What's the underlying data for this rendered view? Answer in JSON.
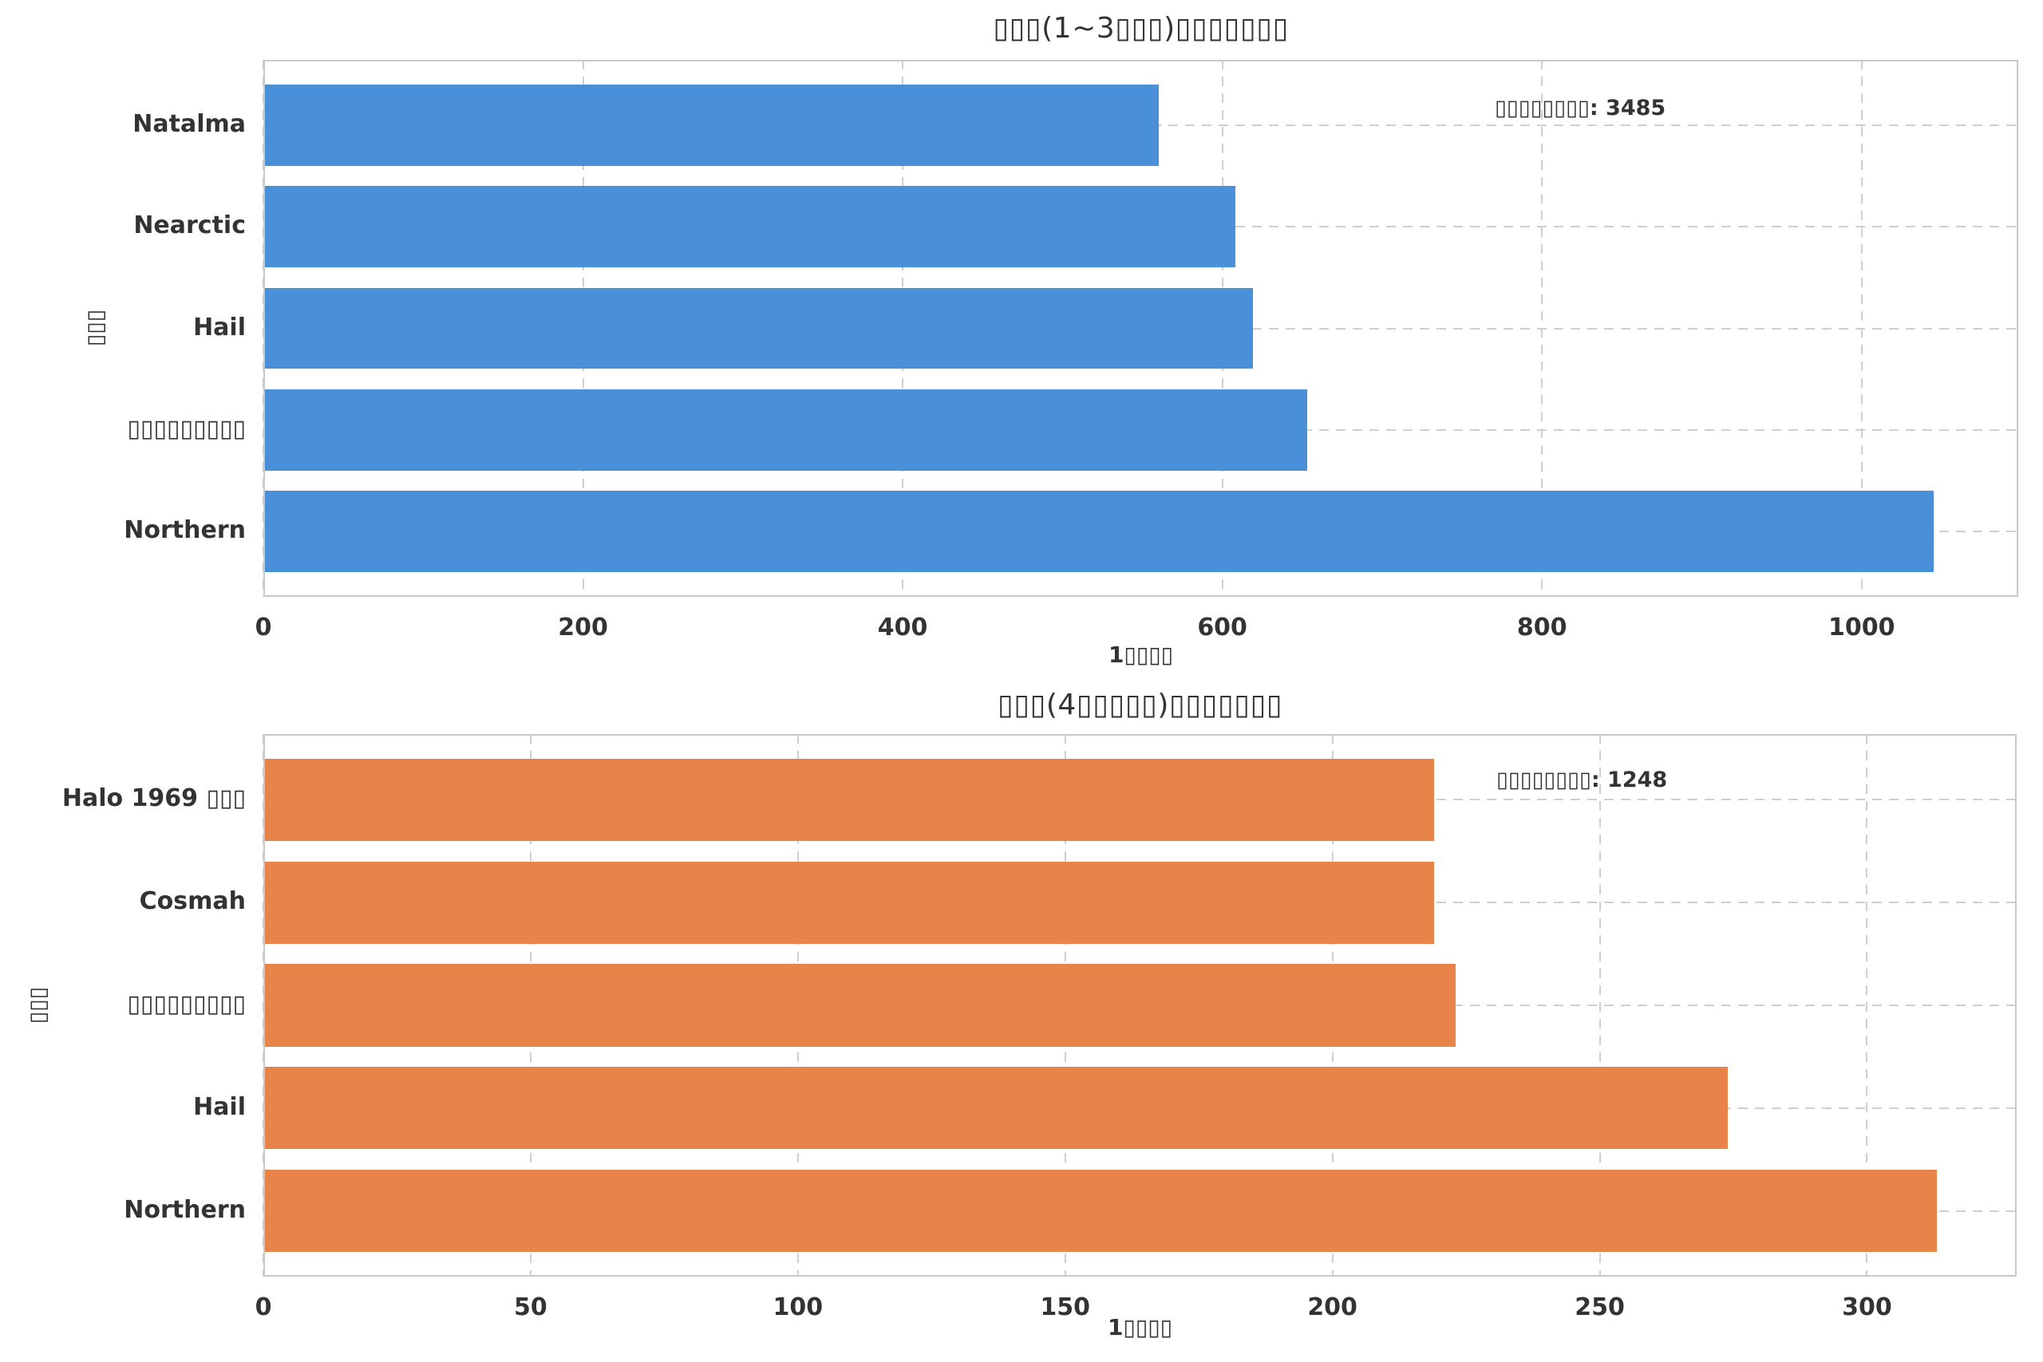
{
  "figure": {
    "background": "#ffffff"
  },
  "colors": {
    "grid": "#cfcfcf",
    "spine": "#c8c8c8",
    "text": "#333333",
    "blue_bar": "#4a90d9",
    "orange_bar": "#e8834a"
  },
  "chart_data": [
    {
      "type": "bar",
      "orientation": "horizontal",
      "title": "▯▯▯(1~3▯▯▯)▯▯▯▯▯▯▯",
      "xlabel": "1▯▯▯▯",
      "ylabel": "▯▯▯",
      "categories": [
        "Natalma",
        "Nearctic",
        "Hail",
        "▯▯▯▯▯▯▯▯▯",
        "Northern"
      ],
      "values": [
        560,
        608,
        619,
        653,
        1045
      ],
      "annotation": "▯▯▯▯▯▯▯▯: 3485",
      "annotation_total": 3485,
      "xticks": [
        0,
        200,
        400,
        600,
        800,
        1000
      ],
      "xlim": [
        0,
        1098
      ],
      "bar_color": "#4a90d9",
      "grid": true
    },
    {
      "type": "bar",
      "orientation": "horizontal",
      "title": "▯▯▯(4▯▯▯▯▯)▯▯▯▯▯▯▯",
      "xlabel": "1▯▯▯▯",
      "ylabel": "▯▯▯",
      "categories": [
        "Halo 1969 ▯▯▯",
        "Cosmah",
        "▯▯▯▯▯▯▯▯▯",
        "Hail",
        "Northern"
      ],
      "values": [
        219,
        219,
        223,
        274,
        313
      ],
      "annotation": "▯▯▯▯▯▯▯▯: 1248",
      "annotation_total": 1248,
      "xticks": [
        0,
        50,
        100,
        150,
        200,
        250,
        300
      ],
      "xlim": [
        0,
        328
      ],
      "bar_color": "#e8834a",
      "grid": true
    }
  ]
}
